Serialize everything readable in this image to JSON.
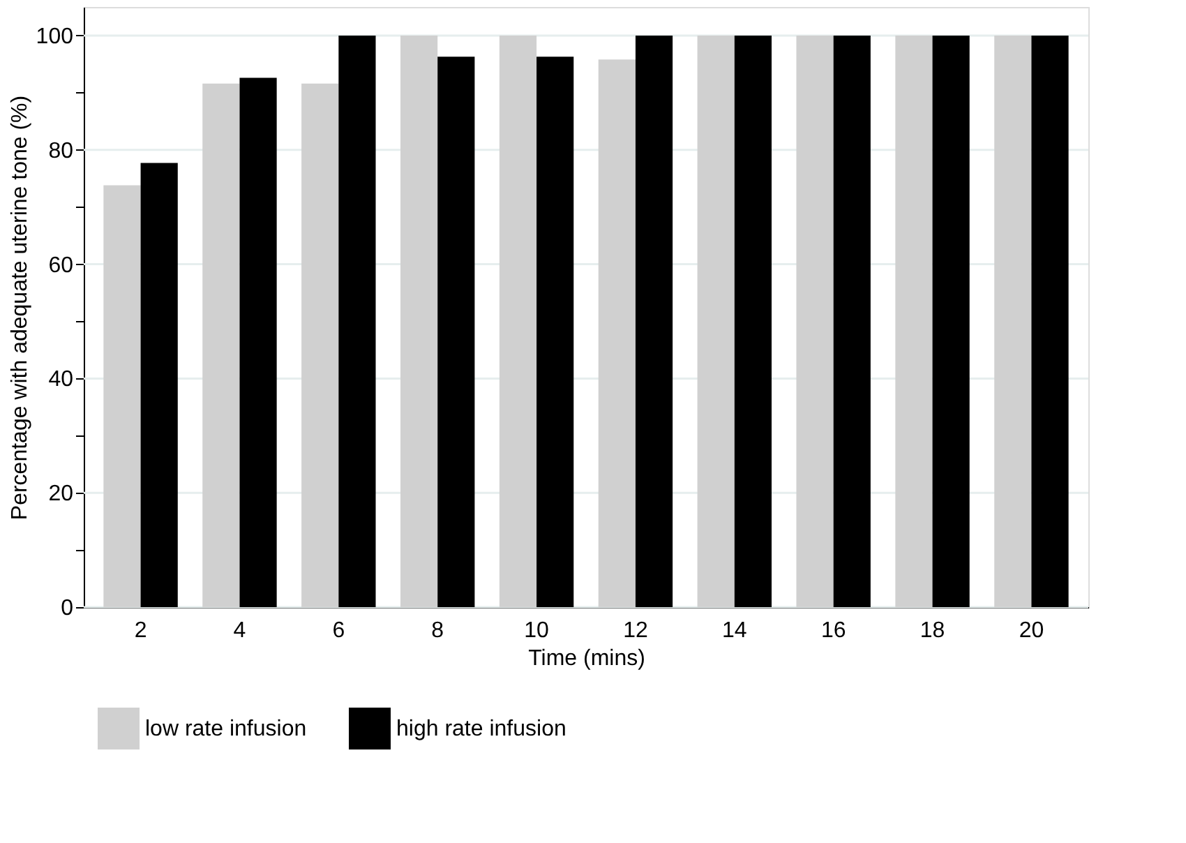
{
  "chart_data": {
    "type": "bar",
    "xlabel": "Time (mins)",
    "ylabel": "Percentage with adequate uterine tone (%)",
    "categories": [
      "2",
      "4",
      "6",
      "8",
      "10",
      "12",
      "14",
      "16",
      "18",
      "20"
    ],
    "series": [
      {
        "name": "low rate infusion",
        "color": "#d0d0d0",
        "values": [
          73.8,
          91.6,
          91.6,
          100,
          100,
          95.8,
          100,
          100,
          100,
          100
        ]
      },
      {
        "name": "high rate infusion",
        "color": "#000000",
        "values": [
          77.7,
          92.6,
          100,
          96.3,
          96.3,
          100,
          100,
          100,
          100,
          100
        ]
      }
    ],
    "ylim": [
      0,
      105
    ],
    "yticks": [
      0,
      {
        "value": 10,
        "label": null
      },
      20,
      {
        "value": 30,
        "label": null
      },
      40,
      {
        "value": 50,
        "label": null
      },
      60,
      {
        "value": 70,
        "label": null
      },
      80,
      {
        "value": 90,
        "label": null
      },
      100
    ],
    "grid": "y",
    "legend": "bottom"
  }
}
